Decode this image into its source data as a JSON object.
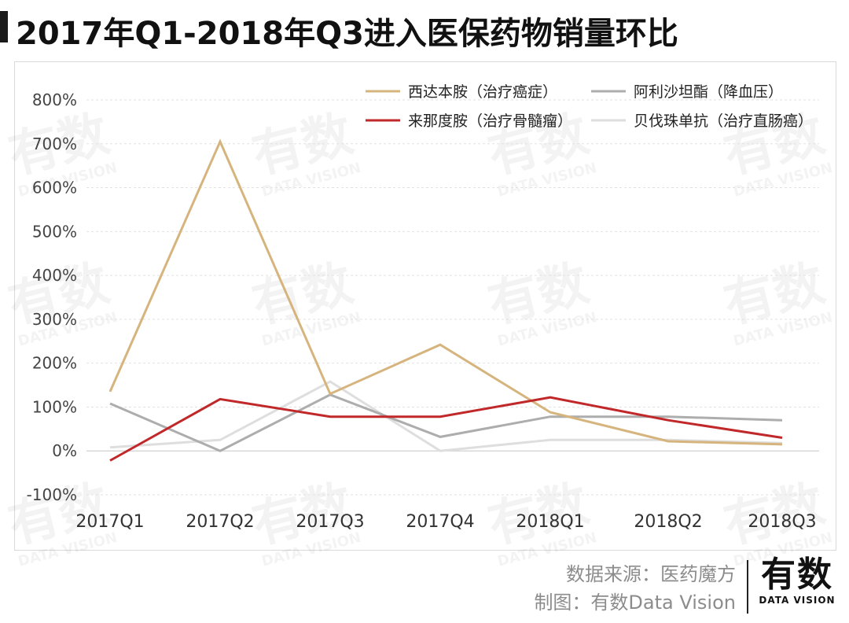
{
  "header": {
    "title": "2017年Q1-2018年Q3进入医保药物销量环比"
  },
  "chart_data": {
    "type": "line",
    "title": "2017年Q1-2018年Q3进入医保药物销量环比",
    "categories": [
      "2017Q1",
      "2017Q2",
      "2017Q3",
      "2017Q4",
      "2018Q1",
      "2018Q2",
      "2018Q3"
    ],
    "y_ticks": [
      "800%",
      "700%",
      "600%",
      "500%",
      "400%",
      "300%",
      "200%",
      "100%",
      "0%",
      "-100%"
    ],
    "y_tick_values": [
      800,
      700,
      600,
      500,
      400,
      300,
      200,
      100,
      0,
      -100
    ],
    "ylim": [
      -100,
      800
    ],
    "ylabel": "",
    "xlabel": "",
    "legend_position": "top-right",
    "series": [
      {
        "name": "西达本胺（治疗癌症）",
        "color": "#d6b47d",
        "values": [
          135,
          705,
          130,
          242,
          88,
          22,
          15
        ]
      },
      {
        "name": "阿利沙坦酯（降血压）",
        "color": "#adadad",
        "values": [
          108,
          0,
          128,
          32,
          78,
          78,
          70
        ]
      },
      {
        "name": "来那度胺（治疗骨髓瘤）",
        "color": "#c0282a",
        "values": [
          -22,
          118,
          78,
          78,
          122,
          70,
          30
        ]
      },
      {
        "name": "贝伐珠单抗（治疗直肠癌）",
        "color": "#dedede",
        "values": [
          8,
          25,
          158,
          0,
          25,
          25,
          18
        ]
      }
    ]
  },
  "watermark": {
    "main_text": "有数",
    "sub_text": "DATA VISION"
  },
  "footer": {
    "source": "数据来源：医药魔方",
    "credit": "制图：有数Data Vision"
  },
  "brand": {
    "main": "有数",
    "sub": "DATA VISION"
  }
}
